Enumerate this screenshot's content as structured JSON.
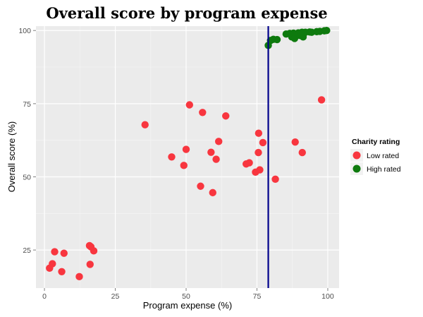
{
  "chart_data": {
    "type": "scatter",
    "title": "Overall score by program expense",
    "xlabel": "Program expense (%)",
    "ylabel": "Overall score (%)",
    "xlim": [
      -3,
      104
    ],
    "ylim": [
      12,
      101.5
    ],
    "xticks": [
      0,
      25,
      50,
      75,
      100
    ],
    "yticks": [
      25,
      50,
      75,
      100
    ],
    "grid": true,
    "legend": {
      "title": "Charity rating",
      "position": "right"
    },
    "vline": {
      "x": 79,
      "color": "#00008b"
    },
    "series": [
      {
        "name": "Low rated",
        "color": "#f8363f",
        "points": [
          [
            1.8,
            18.8
          ],
          [
            2.8,
            20.3
          ],
          [
            3.6,
            24.4
          ],
          [
            6.1,
            17.6
          ],
          [
            6.9,
            23.9
          ],
          [
            12.3,
            15.9
          ],
          [
            15.9,
            26.5
          ],
          [
            16.1,
            20.1
          ],
          [
            16.4,
            26.1
          ],
          [
            17.4,
            24.7
          ],
          [
            35.5,
            67.8
          ],
          [
            44.9,
            56.8
          ],
          [
            49.2,
            53.9
          ],
          [
            50.0,
            59.4
          ],
          [
            51.2,
            74.6
          ],
          [
            55.1,
            46.8
          ],
          [
            55.8,
            72.0
          ],
          [
            58.8,
            58.4
          ],
          [
            59.4,
            44.6
          ],
          [
            60.6,
            56.0
          ],
          [
            61.5,
            62.1
          ],
          [
            64.0,
            70.8
          ],
          [
            71.2,
            54.4
          ],
          [
            72.3,
            54.8
          ],
          [
            74.5,
            51.6
          ],
          [
            75.5,
            58.3
          ],
          [
            75.6,
            64.9
          ],
          [
            76.0,
            52.4
          ],
          [
            77.1,
            61.7
          ],
          [
            81.5,
            49.2
          ],
          [
            88.5,
            61.9
          ],
          [
            91.0,
            58.3
          ],
          [
            97.8,
            76.3
          ]
        ]
      },
      {
        "name": "High rated",
        "color": "#0e7a0e",
        "points": [
          [
            79.0,
            94.9
          ],
          [
            79.8,
            96.6
          ],
          [
            80.8,
            97.0
          ],
          [
            82.1,
            96.9
          ],
          [
            85.3,
            98.8
          ],
          [
            86.6,
            99.0
          ],
          [
            87.3,
            97.8
          ],
          [
            87.9,
            99.1
          ],
          [
            88.3,
            97.3
          ],
          [
            88.9,
            98.5
          ],
          [
            89.6,
            99.2
          ],
          [
            90.2,
            98.3
          ],
          [
            90.9,
            99.4
          ],
          [
            91.3,
            97.8
          ],
          [
            92.1,
            99.4
          ],
          [
            93.6,
            99.5
          ],
          [
            94.3,
            99.4
          ],
          [
            96.1,
            99.6
          ],
          [
            97.2,
            99.7
          ],
          [
            98.8,
            99.9
          ],
          [
            99.6,
            100.0
          ]
        ]
      }
    ]
  }
}
